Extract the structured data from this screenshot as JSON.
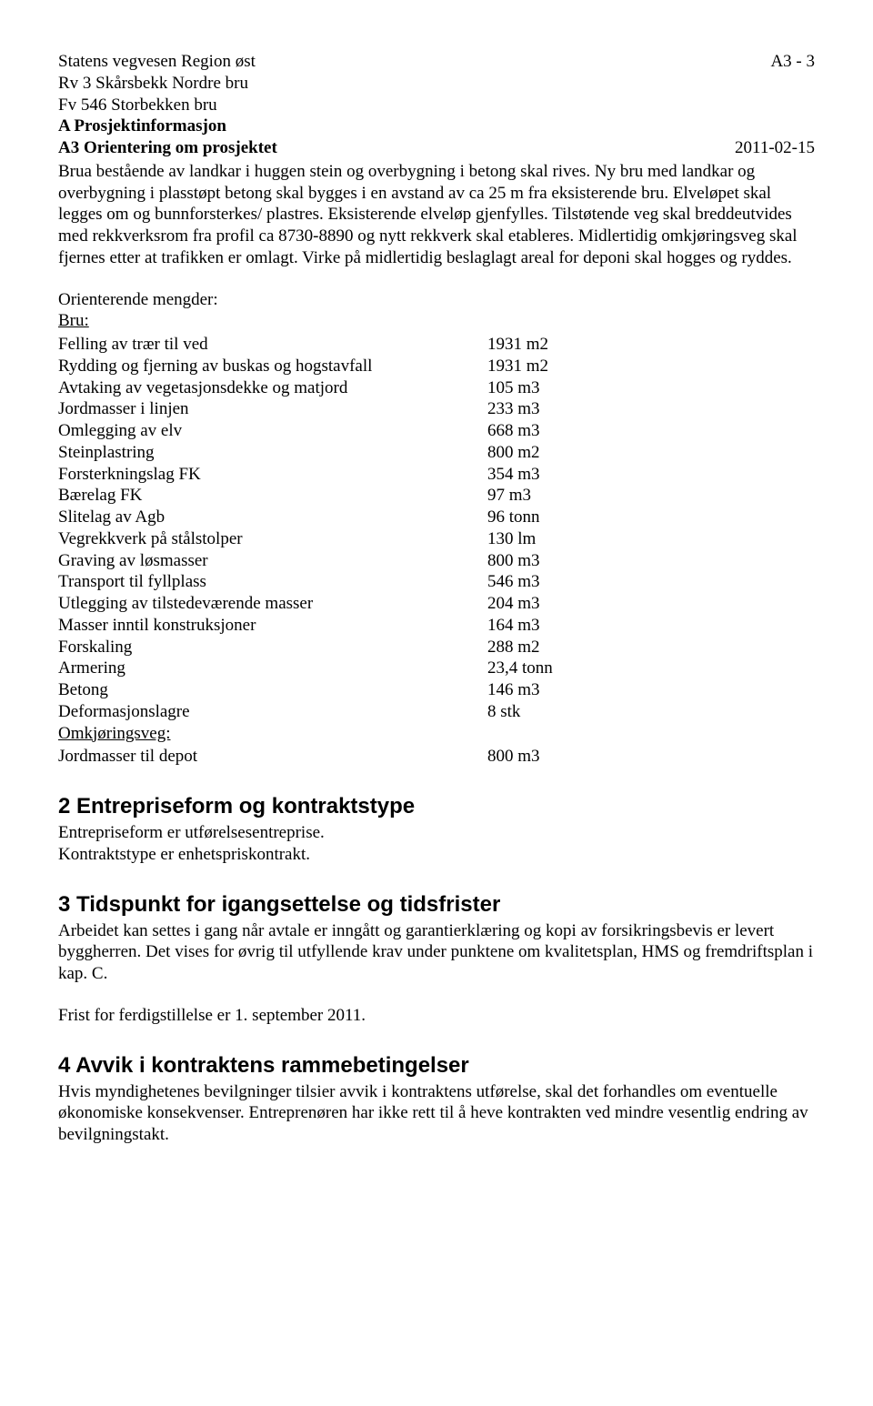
{
  "header": {
    "line1_left": "Statens vegvesen Region øst",
    "line1_right": "A3 - 3",
    "line2": "Rv 3 Skårsbekk Nordre bru",
    "line3": "Fv 546 Storbekken bru",
    "line4": "A Prosjektinformasjon",
    "line5_left": "A3 Orientering om prosjektet",
    "line5_right": "2011-02-15"
  },
  "intro_paragraph": "Brua bestående av landkar i huggen stein og overbygning i betong skal rives. Ny bru med landkar og overbygning i plasstøpt betong skal bygges i en avstand av ca 25 m fra eksisterende bru. Elveløpet skal legges om og bunnforsterkes/ plastres. Eksisterende elveløp gjenfylles. Tilstøtende veg skal breddeutvides med rekkverksrom fra profil ca 8730-8890 og nytt rekkverk skal etableres. Midlertidig omkjøringsveg skal fjernes etter at trafikken er omlagt. Virke på midlertidig beslaglagt areal for deponi skal hogges og ryddes.",
  "qty_block": {
    "heading": "Orienterende mengder:",
    "group1_label": "Bru:",
    "rows1": [
      {
        "desc": "Felling av trær til ved",
        "val": "1931 m2"
      },
      {
        "desc": "Rydding og fjerning av buskas og hogstavfall",
        "val": "1931 m2"
      },
      {
        "desc": "Avtaking av vegetasjonsdekke og matjord",
        "val": "105 m3"
      },
      {
        "desc": "Jordmasser i linjen",
        "val": "233 m3"
      },
      {
        "desc": "Omlegging av elv",
        "val": "668 m3"
      },
      {
        "desc": "Steinplastring",
        "val": "800 m2"
      },
      {
        "desc": "Forsterkningslag FK",
        "val": "354 m3"
      },
      {
        "desc": "Bærelag FK",
        "val": "97 m3"
      },
      {
        "desc": "Slitelag av Agb",
        "val": "96 tonn"
      },
      {
        "desc": "Vegrekkverk på stålstolper",
        "val": "130 lm"
      },
      {
        "desc": "Graving av løsmasser",
        "val": "800 m3"
      },
      {
        "desc": "Transport til fyllplass",
        "val": "546 m3"
      },
      {
        "desc": "Utlegging av tilstedeværende masser",
        "val": "204 m3"
      },
      {
        "desc": "Masser inntil konstruksjoner",
        "val": "164 m3"
      },
      {
        "desc": "Forskaling",
        "val": "288 m2"
      },
      {
        "desc": "Armering",
        "val": "23,4 tonn"
      },
      {
        "desc": "Betong",
        "val": "146 m3"
      },
      {
        "desc": "Deformasjonslagre",
        "val": "8 stk"
      }
    ],
    "group2_label": "Omkjøringsveg:",
    "rows2": [
      {
        "desc": "Jordmasser til depot",
        "val": "800 m3"
      }
    ]
  },
  "section2": {
    "title": "2  Entrepriseform og kontraktstype",
    "p1": "Entrepriseform er utførelsesentreprise.",
    "p2": "Kontraktstype er enhetspriskontrakt."
  },
  "section3": {
    "title": "3  Tidspunkt for igangsettelse og tidsfrister",
    "p1": "Arbeidet kan settes i gang når avtale er inngått og garantierklæring og kopi av forsikringsbevis er levert byggherren. Det vises for øvrig til utfyllende krav under punktene om kvalitetsplan, HMS og fremdriftsplan i kap. C.",
    "p2": "Frist for ferdigstillelse er 1. september 2011."
  },
  "section4": {
    "title": "4  Avvik i kontraktens rammebetingelser",
    "p1": "Hvis myndighetenes bevilgninger tilsier avvik i kontraktens utførelse, skal det forhandles om eventuelle økonomiske konsekvenser. Entreprenøren har ikke rett til å heve kontrakten ved mindre vesentlig endring av bevilgningstakt."
  }
}
